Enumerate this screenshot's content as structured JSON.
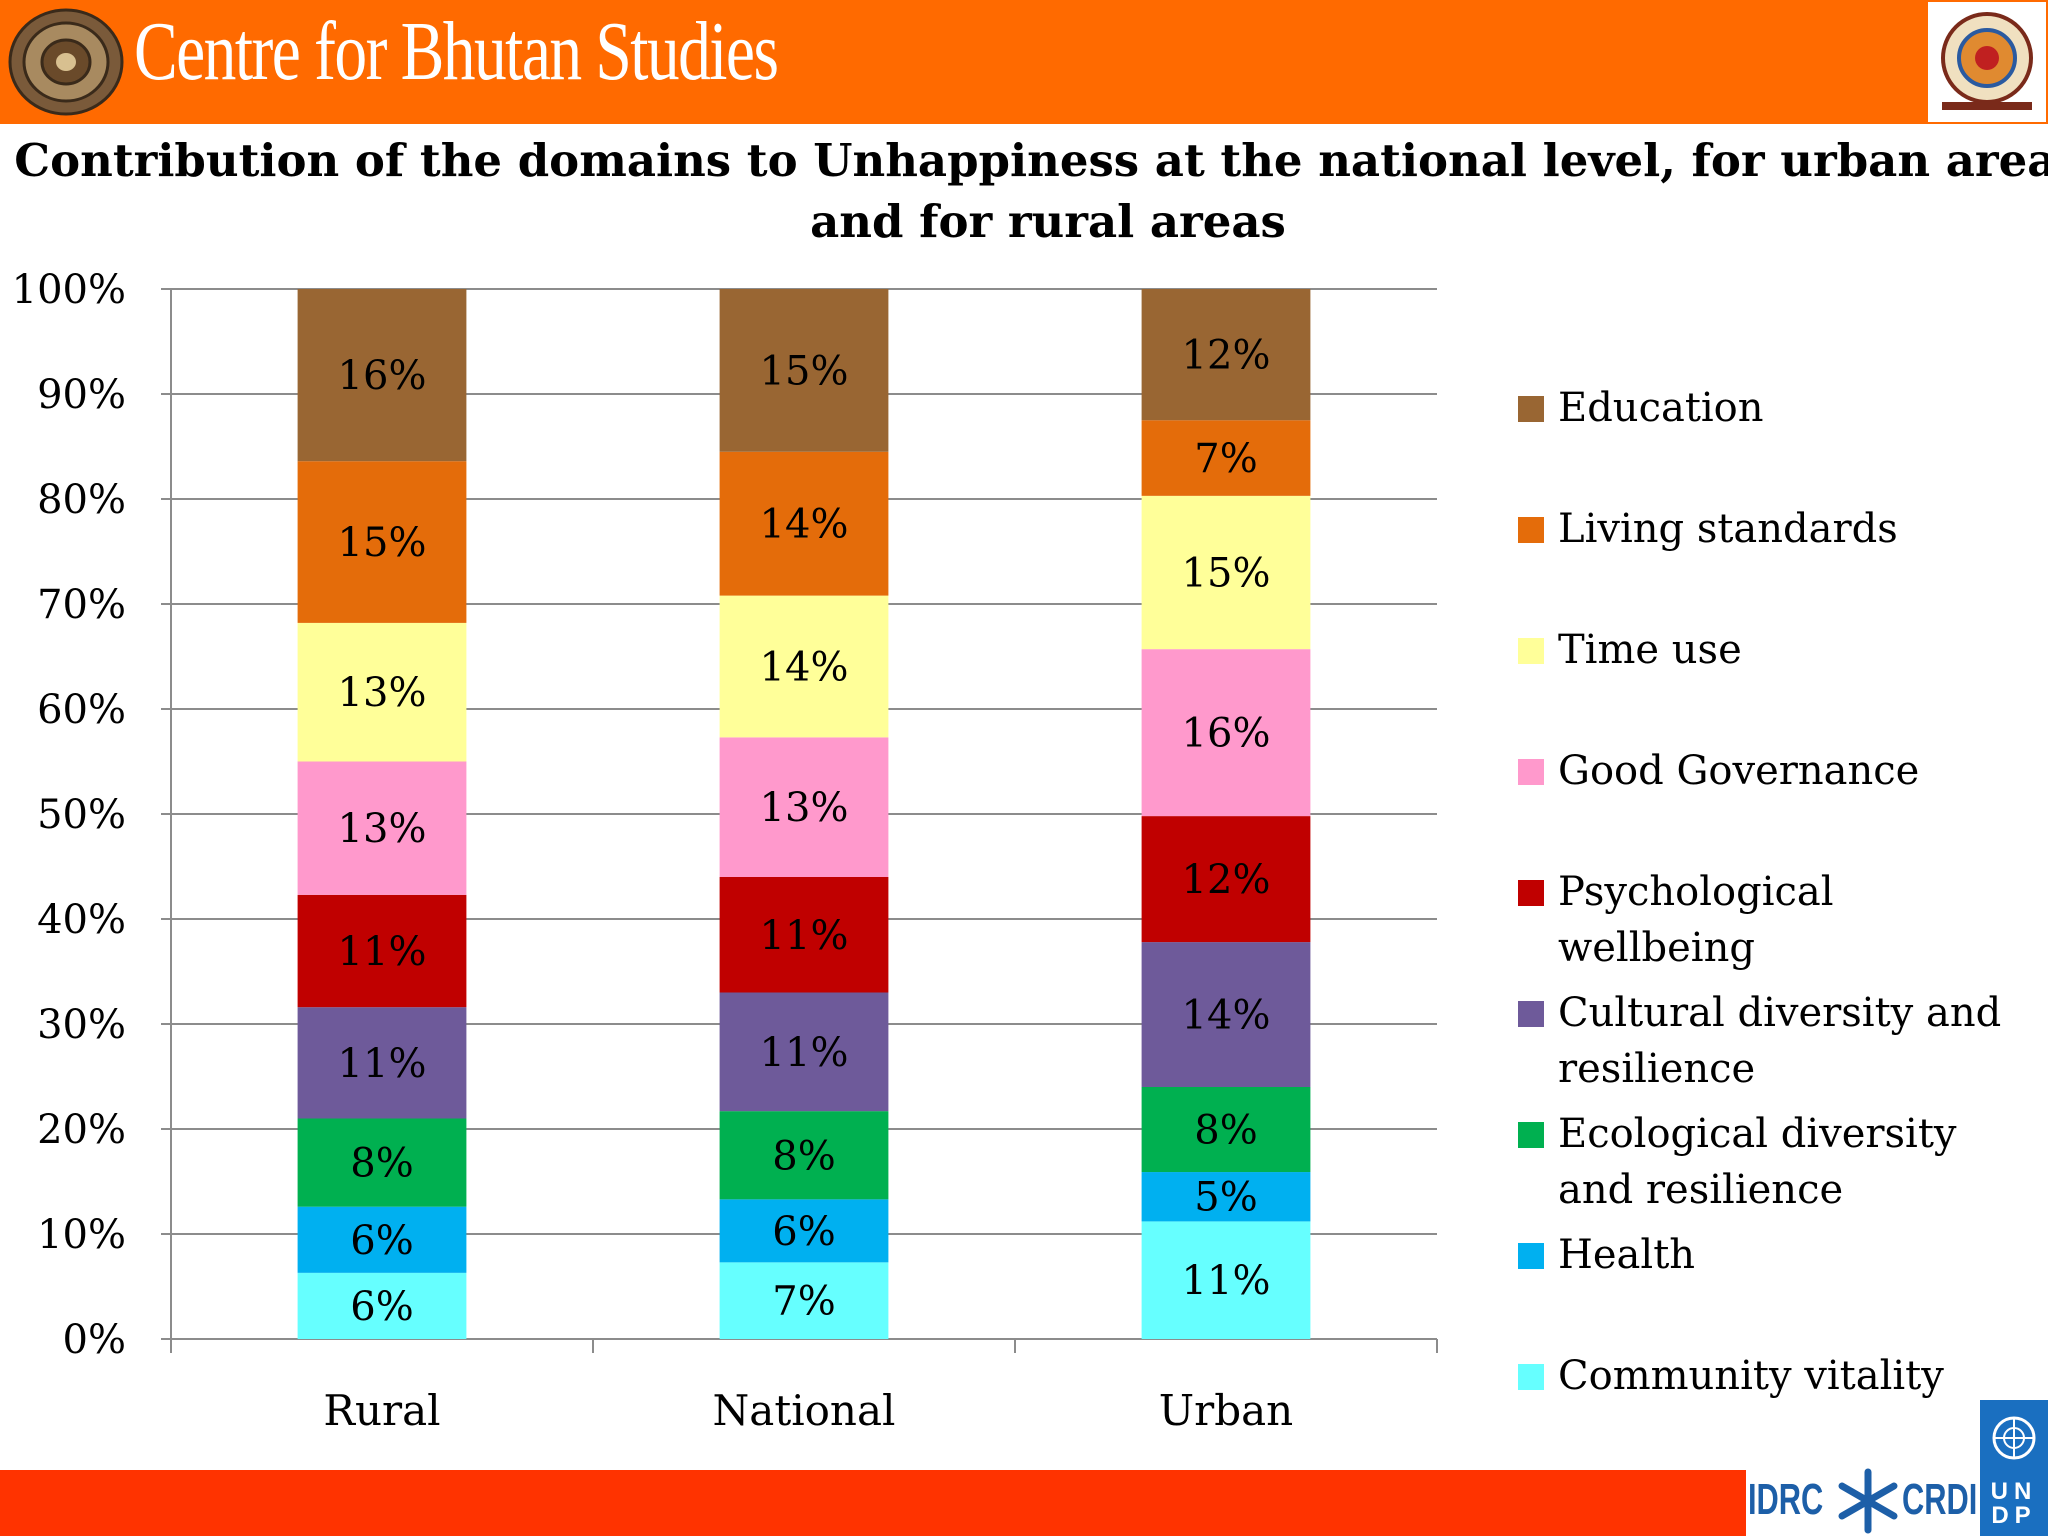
{
  "header": {
    "org_name": "Centre for Bhutan Studies",
    "left_logo_icon": "dharma-wheel-icon",
    "right_logo_icon": "bhutan-emblem-icon"
  },
  "footer": {
    "idrc_label": "IDRC",
    "crdi_label": "CRDI",
    "undp_label": "UNDP",
    "idrc_icon": "idrc-star-icon",
    "undp_icon": "un-emblem-icon"
  },
  "colors": {
    "header": "#ff6a00",
    "footer": "#ff3300"
  },
  "chart_data": {
    "type": "bar",
    "stacked": true,
    "title": "Contribution of the domains to Unhappiness at the national level, for urban areas and for rural areas",
    "xlabel": "",
    "ylabel": "",
    "categories": [
      "Rural",
      "National",
      "Urban"
    ],
    "ylim": [
      0,
      100
    ],
    "yticks": [
      0,
      10,
      20,
      30,
      40,
      50,
      60,
      70,
      80,
      90,
      100
    ],
    "ytick_labels": [
      "0%",
      "10%",
      "20%",
      "30%",
      "40%",
      "50%",
      "60%",
      "70%",
      "80%",
      "90%",
      "100%"
    ],
    "grid": true,
    "legend_position": "right",
    "series": [
      {
        "name": "Community vitality",
        "color": "#66ffff",
        "values": [
          6.3,
          7.3,
          11.2
        ],
        "labels": [
          "6%",
          "7%",
          "11%"
        ]
      },
      {
        "name": "Health",
        "color": "#00b0f0",
        "values": [
          6.3,
          6.0,
          4.7
        ],
        "labels": [
          "6%",
          "6%",
          "5%"
        ]
      },
      {
        "name": "Ecological diversity and resilience",
        "color": "#00b050",
        "values": [
          8.4,
          8.4,
          8.1
        ],
        "labels": [
          "8%",
          "8%",
          "8%"
        ]
      },
      {
        "name": "Cultural diversity and resilience",
        "color": "#6e5a9a",
        "values": [
          10.6,
          11.3,
          13.8
        ],
        "labels": [
          "11%",
          "11%",
          "14%"
        ]
      },
      {
        "name": "Psychological wellbeing",
        "color": "#c00000",
        "values": [
          10.7,
          11.0,
          12.0
        ],
        "labels": [
          "11%",
          "11%",
          "12%"
        ]
      },
      {
        "name": "Good Governance",
        "color": "#ff99cc",
        "values": [
          12.7,
          13.3,
          15.9
        ],
        "labels": [
          "13%",
          "13%",
          "16%"
        ]
      },
      {
        "name": "Time use",
        "color": "#ffff99",
        "values": [
          13.2,
          13.5,
          14.6
        ],
        "labels": [
          "13%",
          "14%",
          "15%"
        ]
      },
      {
        "name": "Living standards",
        "color": "#e46c0a",
        "values": [
          15.4,
          13.7,
          7.2
        ],
        "labels": [
          "15%",
          "14%",
          "7%"
        ]
      },
      {
        "name": "Education",
        "color": "#996633",
        "values": [
          16.4,
          15.5,
          12.5
        ],
        "labels": [
          "16%",
          "15%",
          "12%"
        ]
      }
    ]
  }
}
